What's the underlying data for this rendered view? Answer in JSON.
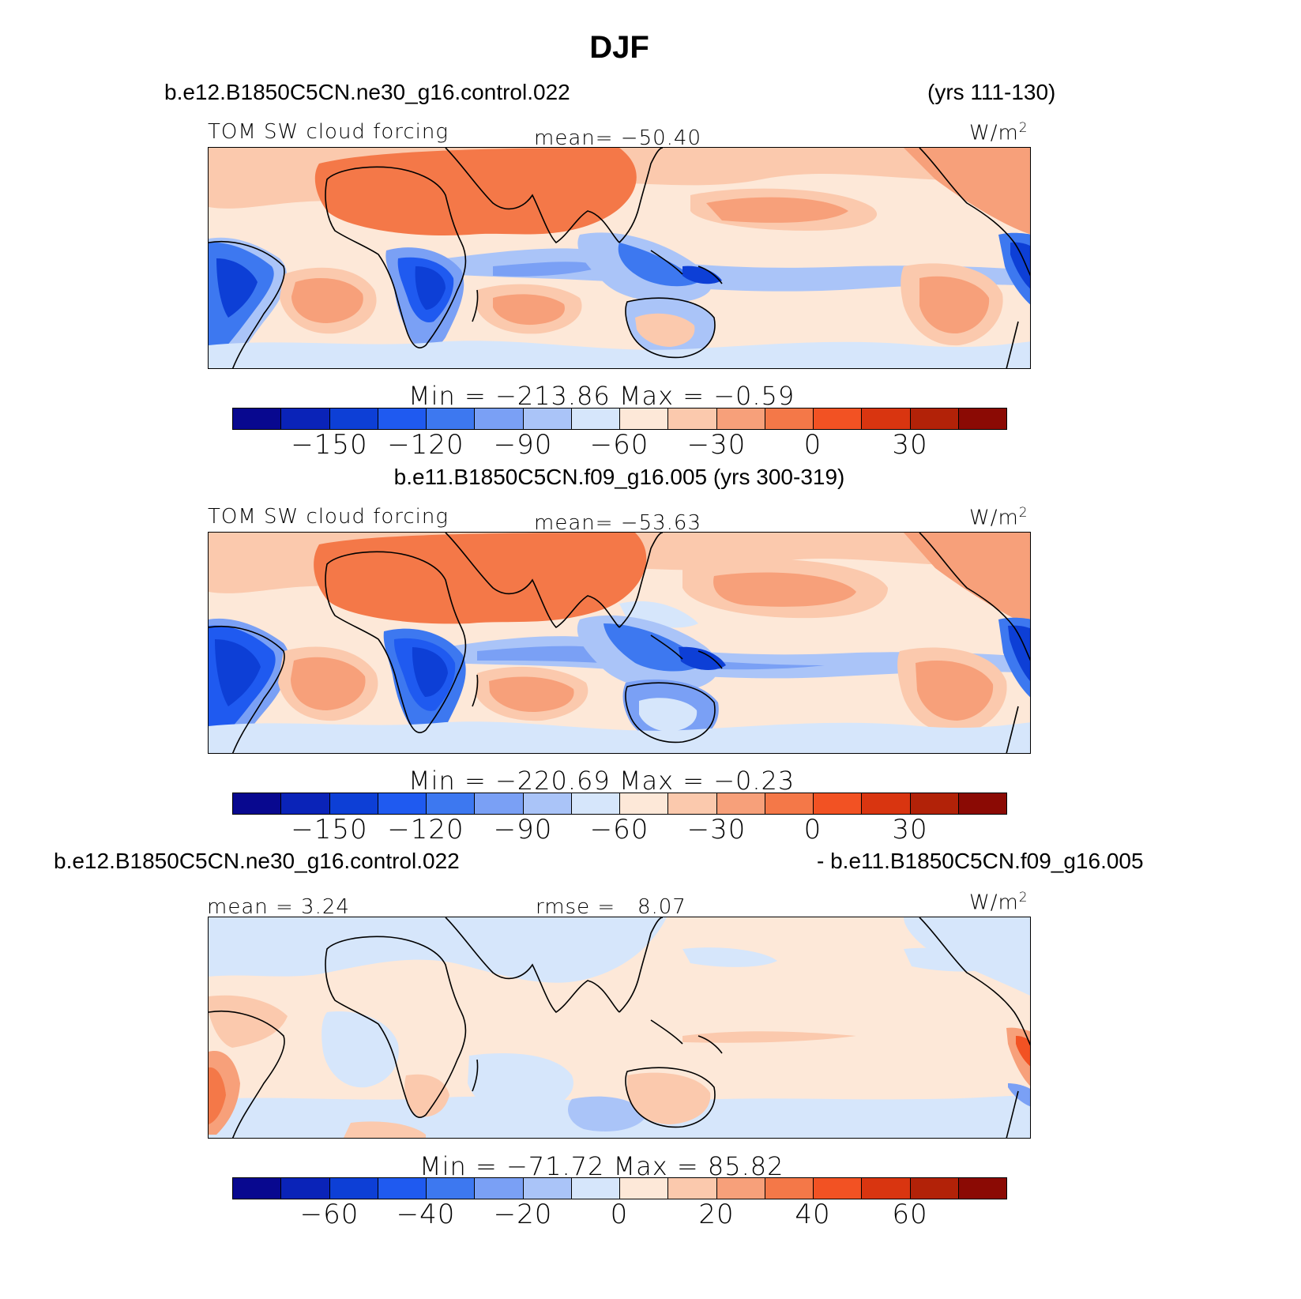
{
  "title": "DJF",
  "units_label": "W/m",
  "units_exp": "2",
  "variable": "TOM SW cloud forcing",
  "colors": {
    "abs_levels": [
      "#08088f",
      "#0a23b8",
      "#0d3fd6",
      "#1f5af0",
      "#3d78f0",
      "#7aa0f5",
      "#aac4f8",
      "#d6e6fb",
      "#fde8d8",
      "#fbc9ad",
      "#f7a07a",
      "#f47848",
      "#f25223",
      "#d93510",
      "#b22208",
      "#8b0a04"
    ],
    "land": "none",
    "coast": "#000000"
  },
  "panels": [
    {
      "case_left": "b.e12.B1850C5CN.ne30_g16.control.022",
      "case_right": "(yrs 111-130)",
      "left_label": "TOM SW cloud forcing",
      "stat_label": "mean=",
      "stat_value": "−50.40",
      "minmax_text": "Min  =  −213.86  Max  =   −0.59"
    },
    {
      "case_center": "b.e11.B1850C5CN.f09_g16.005 (yrs 300-319)",
      "left_label": "TOM SW cloud forcing",
      "stat_label": "mean=",
      "stat_value": "−53.63",
      "minmax_text": "Min  =  −220.69  Max  =   −0.23"
    },
    {
      "case_left": "b.e12.B1850C5CN.ne30_g16.control.022",
      "case_right": "- b.e11.B1850C5CN.f09_g16.005",
      "left_label": "mean  =    3.24",
      "stat_label": "rmse  =",
      "stat_value": "8.07",
      "minmax_text": "Min  =  −71.72  Max  =   85.82"
    }
  ],
  "colorbar_ticks_abs": [
    "−150",
    "−120",
    "−90",
    "−60",
    "−30",
    "0",
    "30"
  ],
  "colorbar_ticks_diff": [
    "−60",
    "−40",
    "−20",
    "0",
    "20",
    "40",
    "60"
  ],
  "chart_data": [
    {
      "type": "heatmap",
      "title": "DJF",
      "subtitle": "b.e12.B1850C5CN.ne30_g16.control.022 (yrs 111-130)",
      "variable": "TOM SW cloud forcing",
      "units": "W/m2",
      "mean": -50.4,
      "min": -213.86,
      "max": -0.59,
      "contour_levels": [
        -165,
        -150,
        -135,
        -120,
        -105,
        -90,
        -75,
        -60,
        -45,
        -30,
        -15,
        0,
        15,
        30,
        45
      ],
      "colorbar_ticks": [
        -150,
        -120,
        -90,
        -60,
        -30,
        0,
        30
      ]
    },
    {
      "type": "heatmap",
      "subtitle": "b.e11.B1850C5CN.f09_g16.005 (yrs 300-319)",
      "variable": "TOM SW cloud forcing",
      "units": "W/m2",
      "mean": -53.63,
      "min": -220.69,
      "max": -0.23,
      "contour_levels": [
        -165,
        -150,
        -135,
        -120,
        -105,
        -90,
        -75,
        -60,
        -45,
        -30,
        -15,
        0,
        15,
        30,
        45
      ],
      "colorbar_ticks": [
        -150,
        -120,
        -90,
        -60,
        -30,
        0,
        30
      ]
    },
    {
      "type": "heatmap",
      "subtitle": "b.e12.B1850C5CN.ne30_g16.control.022 - b.e11.B1850C5CN.f09_g16.005",
      "variable": "TOM SW cloud forcing difference",
      "units": "W/m2",
      "mean": 3.24,
      "rmse": 8.07,
      "min": -71.72,
      "max": 85.82,
      "contour_levels": [
        -70,
        -60,
        -50,
        -40,
        -30,
        -20,
        -10,
        0,
        10,
        20,
        30,
        40,
        50,
        60,
        70
      ],
      "colorbar_ticks": [
        -60,
        -40,
        -20,
        0,
        20,
        40,
        60
      ]
    }
  ]
}
